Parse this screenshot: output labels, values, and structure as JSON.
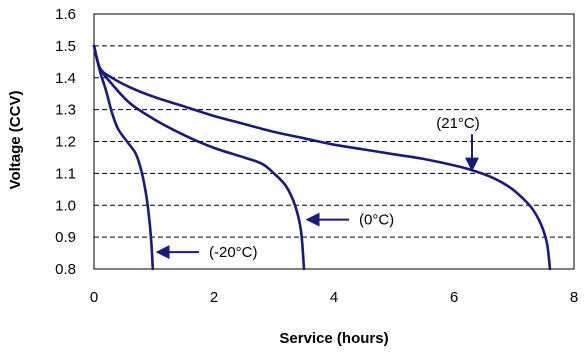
{
  "chart_data": {
    "type": "line",
    "xlabel": "Service (hours)",
    "ylabel": "Voltage (CCV)",
    "xlim": [
      0,
      8
    ],
    "ylim": [
      0.8,
      1.6
    ],
    "x_ticks": [
      "0",
      "2",
      "4",
      "6",
      "8"
    ],
    "y_ticks": [
      "0.8",
      "0.9",
      "1.0",
      "1.1",
      "1.2",
      "1.3",
      "1.4",
      "1.5",
      "1.6"
    ],
    "grid": "horizontal dashed",
    "line_color": "#1a1a7a",
    "series": [
      {
        "name": "(21°C)",
        "points": [
          [
            0,
            1.5
          ],
          [
            0.1,
            1.43
          ],
          [
            0.3,
            1.4
          ],
          [
            0.6,
            1.37
          ],
          [
            1.0,
            1.34
          ],
          [
            1.5,
            1.31
          ],
          [
            2.0,
            1.28
          ],
          [
            2.5,
            1.255
          ],
          [
            3.0,
            1.23
          ],
          [
            3.5,
            1.21
          ],
          [
            4.0,
            1.19
          ],
          [
            4.5,
            1.175
          ],
          [
            5.0,
            1.16
          ],
          [
            5.5,
            1.145
          ],
          [
            6.0,
            1.125
          ],
          [
            6.3,
            1.11
          ],
          [
            6.6,
            1.09
          ],
          [
            6.9,
            1.06
          ],
          [
            7.1,
            1.03
          ],
          [
            7.3,
            0.99
          ],
          [
            7.45,
            0.94
          ],
          [
            7.55,
            0.88
          ],
          [
            7.6,
            0.8
          ]
        ]
      },
      {
        "name": "(0°C)",
        "points": [
          [
            0,
            1.5
          ],
          [
            0.1,
            1.43
          ],
          [
            0.3,
            1.38
          ],
          [
            0.6,
            1.32
          ],
          [
            1.0,
            1.27
          ],
          [
            1.5,
            1.22
          ],
          [
            2.0,
            1.18
          ],
          [
            2.5,
            1.15
          ],
          [
            2.8,
            1.13
          ],
          [
            3.0,
            1.1
          ],
          [
            3.2,
            1.06
          ],
          [
            3.35,
            1.0
          ],
          [
            3.45,
            0.92
          ],
          [
            3.5,
            0.8
          ]
        ]
      },
      {
        "name": "(-20°C)",
        "points": [
          [
            0,
            1.5
          ],
          [
            0.1,
            1.42
          ],
          [
            0.2,
            1.36
          ],
          [
            0.3,
            1.29
          ],
          [
            0.4,
            1.24
          ],
          [
            0.55,
            1.2
          ],
          [
            0.7,
            1.16
          ],
          [
            0.8,
            1.1
          ],
          [
            0.88,
            1.02
          ],
          [
            0.93,
            0.94
          ],
          [
            0.96,
            0.87
          ],
          [
            0.98,
            0.8
          ]
        ]
      }
    ],
    "annotations": [
      {
        "series": "(21°C)",
        "text": "(21°C)",
        "arrow": "down",
        "target": [
          6.3,
          1.11
        ]
      },
      {
        "series": "(0°C)",
        "text": "(0°C)",
        "arrow": "left",
        "target": [
          3.55,
          0.955
        ]
      },
      {
        "series": "(-20°C)",
        "text": "(-20°C)",
        "arrow": "left",
        "target": [
          1.05,
          0.853
        ]
      }
    ]
  }
}
